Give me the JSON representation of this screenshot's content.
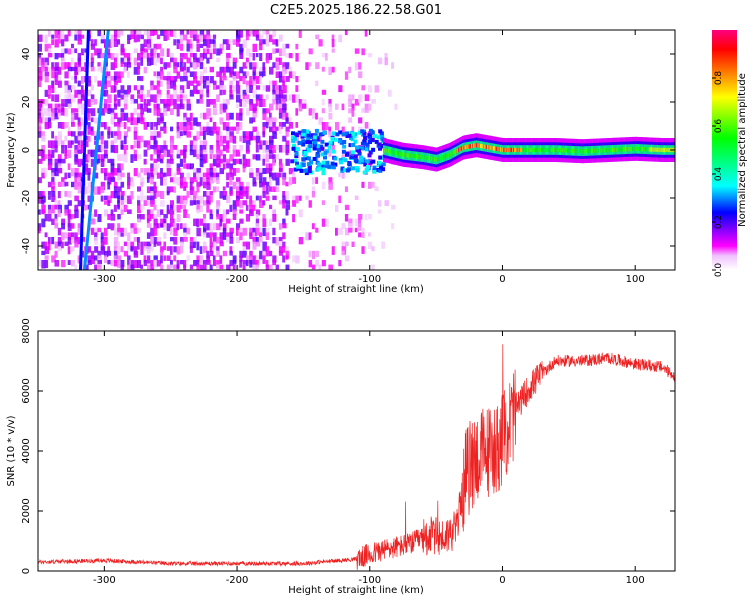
{
  "title": "C2E5.2025.186.22.58.G01",
  "chart_data": [
    {
      "type": "heatmap",
      "xlabel": "Height of straight line (km)",
      "ylabel": "Frequency (Hz)",
      "xlim": [
        -350,
        130
      ],
      "ylim": [
        -50,
        50
      ],
      "xticks": [
        -300,
        -200,
        -100,
        0,
        100
      ],
      "yticks": [
        -40,
        -20,
        0,
        20,
        40
      ],
      "colorbar": {
        "label": "Normalized spectral amplitude",
        "range": [
          0.0,
          1.0
        ],
        "ticks": [
          0.0,
          0.2,
          0.4,
          0.6,
          0.8
        ],
        "tick_labels": [
          "0.0",
          "0.2",
          "0.4",
          "0.6",
          "0.8"
        ],
        "colormap": [
          "#ffffff",
          "#ff00ff",
          "#8000ff",
          "#0000ff",
          "#00ffff",
          "#00ff00",
          "#ffff00",
          "#ff8000",
          "#ff0000"
        ]
      },
      "features": {
        "noise_region_x": [
          -350,
          -160
        ],
        "weak_noise_region_x": [
          -160,
          -100
        ],
        "onset_cluster_x": [
          -160,
          -90
        ],
        "signal_track": {
          "x": [
            -90,
            -75,
            -60,
            -50,
            -40,
            -30,
            -20,
            -10,
            0,
            20,
            40,
            60,
            80,
            100,
            120,
            130
          ],
          "y": [
            0,
            -2,
            -3,
            -4,
            -2,
            1,
            2,
            1,
            0,
            0,
            0,
            -0.5,
            0,
            0.5,
            0,
            0
          ]
        },
        "line_a": {
          "x": [
            -318,
            -312
          ],
          "y": [
            -50,
            50
          ]
        },
        "line_b": {
          "x": [
            -315,
            -297
          ],
          "y": [
            -50,
            50
          ]
        }
      }
    },
    {
      "type": "line",
      "xlabel": "Height of straight line (km)",
      "ylabel": "SNR (10 * v/v)",
      "xlim": [
        -350,
        130
      ],
      "ylim": [
        0,
        8000
      ],
      "xticks": [
        -300,
        -200,
        -100,
        0,
        100
      ],
      "yticks": [
        0,
        2000,
        4000,
        6000,
        8000
      ],
      "line_color": "#ee2222",
      "series": [
        {
          "x": [
            -350,
            -300,
            -250,
            -200,
            -150,
            -110,
            -90,
            -70,
            -55,
            -45,
            -35,
            -28,
            -20,
            -10,
            0,
            10,
            20,
            30,
            40,
            60,
            80,
            100,
            120,
            130
          ],
          "y": [
            300,
            350,
            250,
            250,
            250,
            400,
            700,
            900,
            1200,
            1100,
            1400,
            3200,
            3800,
            4000,
            4300,
            5400,
            6100,
            6600,
            7000,
            7000,
            7100,
            6900,
            6800,
            6500
          ]
        }
      ]
    }
  ]
}
